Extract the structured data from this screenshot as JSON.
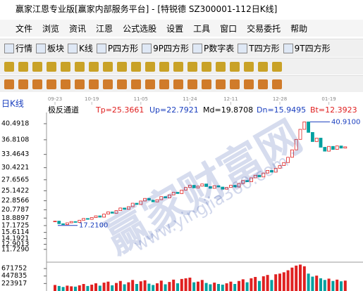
{
  "window_title": "赢家江恩专业版[赢家内部服务平台] - [特锐德  SZ300001-112日K线]",
  "menu": [
    "文件",
    "浏览",
    "资讯",
    "江恩",
    "公式选股",
    "设置",
    "工具",
    "窗口",
    "交易委托",
    "帮助"
  ],
  "toolbar": [
    "行情",
    "板块",
    "K线",
    "P四方形",
    "9P四方形",
    "P数字表",
    "T四方形",
    "9T四方形"
  ],
  "chart": {
    "period_label": "日K线",
    "indicator_name": "极反通道",
    "indicator_params": [
      "Tp=25.3661",
      "Up=22.7921",
      "Md=19.8708",
      "Dn=15.9495",
      "Bt=12.3923"
    ],
    "dates": [
      "09-23",
      "10-19",
      "11-05",
      "11-24",
      "12-11",
      "12-28",
      "01-19"
    ],
    "date_index": [
      0,
      9,
      21,
      33,
      43,
      55,
      67
    ],
    "ylim": [
      9.28,
      42.58
    ],
    "price_ticks": [
      40.4918,
      36.8108,
      33.4643,
      30.4221,
      27.6565,
      25.1422,
      22.8566,
      20.7787,
      18.8897,
      17.1725,
      15.6114,
      14.1921,
      12.9013,
      {
        "value": 11.729,
        "label": "11.7290"
      }
    ],
    "closes": [
      18.2,
      17.6,
      17.4,
      17.8,
      18.1,
      17.9,
      18.4,
      18.8,
      18.6,
      19.0,
      19.4,
      19.1,
      19.8,
      20.3,
      20.0,
      20.6,
      21.2,
      20.9,
      21.5,
      22.3,
      22.0,
      22.8,
      23.4,
      23.0,
      22.6,
      23.1,
      23.8,
      23.5,
      24.2,
      24.8,
      24.5,
      25.3,
      25.9,
      26.4,
      25.8,
      26.2,
      26.7,
      26.1,
      25.7,
      26.3,
      26.0,
      25.5,
      25.9,
      26.4,
      26.0,
      26.8,
      27.5,
      27.2,
      28.1,
      28.7,
      28.3,
      29.2,
      29.8,
      29.4,
      30.3,
      30.9,
      31.6,
      32.8,
      34.5,
      36.9,
      39.2,
      40.91,
      38.5,
      36.4,
      37.2,
      35.1,
      34.2,
      35.3,
      34.6,
      35.4,
      34.9,
      35.2
    ],
    "high_label": {
      "value": 40.91,
      "label": "40.9100"
    },
    "low_label": {
      "value": 17.21,
      "label": "17.2100"
    },
    "volume_lim": [
      0,
      820000
    ],
    "volume_ticks": [
      671752,
      447835,
      223917
    ],
    "volumes": [
      180000,
      150000,
      120000,
      160000,
      140000,
      130000,
      170000,
      210000,
      150000,
      190000,
      230000,
      160000,
      250000,
      280000,
      170000,
      240000,
      300000,
      200000,
      260000,
      330000,
      210000,
      290000,
      320000,
      220000,
      180000,
      230000,
      310000,
      200000,
      270000,
      340000,
      230000,
      360000,
      380000,
      400000,
      260000,
      280000,
      330000,
      240000,
      200000,
      250000,
      210000,
      190000,
      230000,
      280000,
      210000,
      300000,
      350000,
      260000,
      380000,
      420000,
      300000,
      440000,
      480000,
      330000,
      500000,
      520000,
      560000,
      620000,
      700000,
      760000,
      790000,
      740000,
      520000,
      430000,
      460000,
      380000,
      330000,
      370000,
      300000,
      340000,
      290000,
      310000
    ]
  },
  "watermark": [
    "赢家财富网",
    "www.yingjia360.com"
  ]
}
